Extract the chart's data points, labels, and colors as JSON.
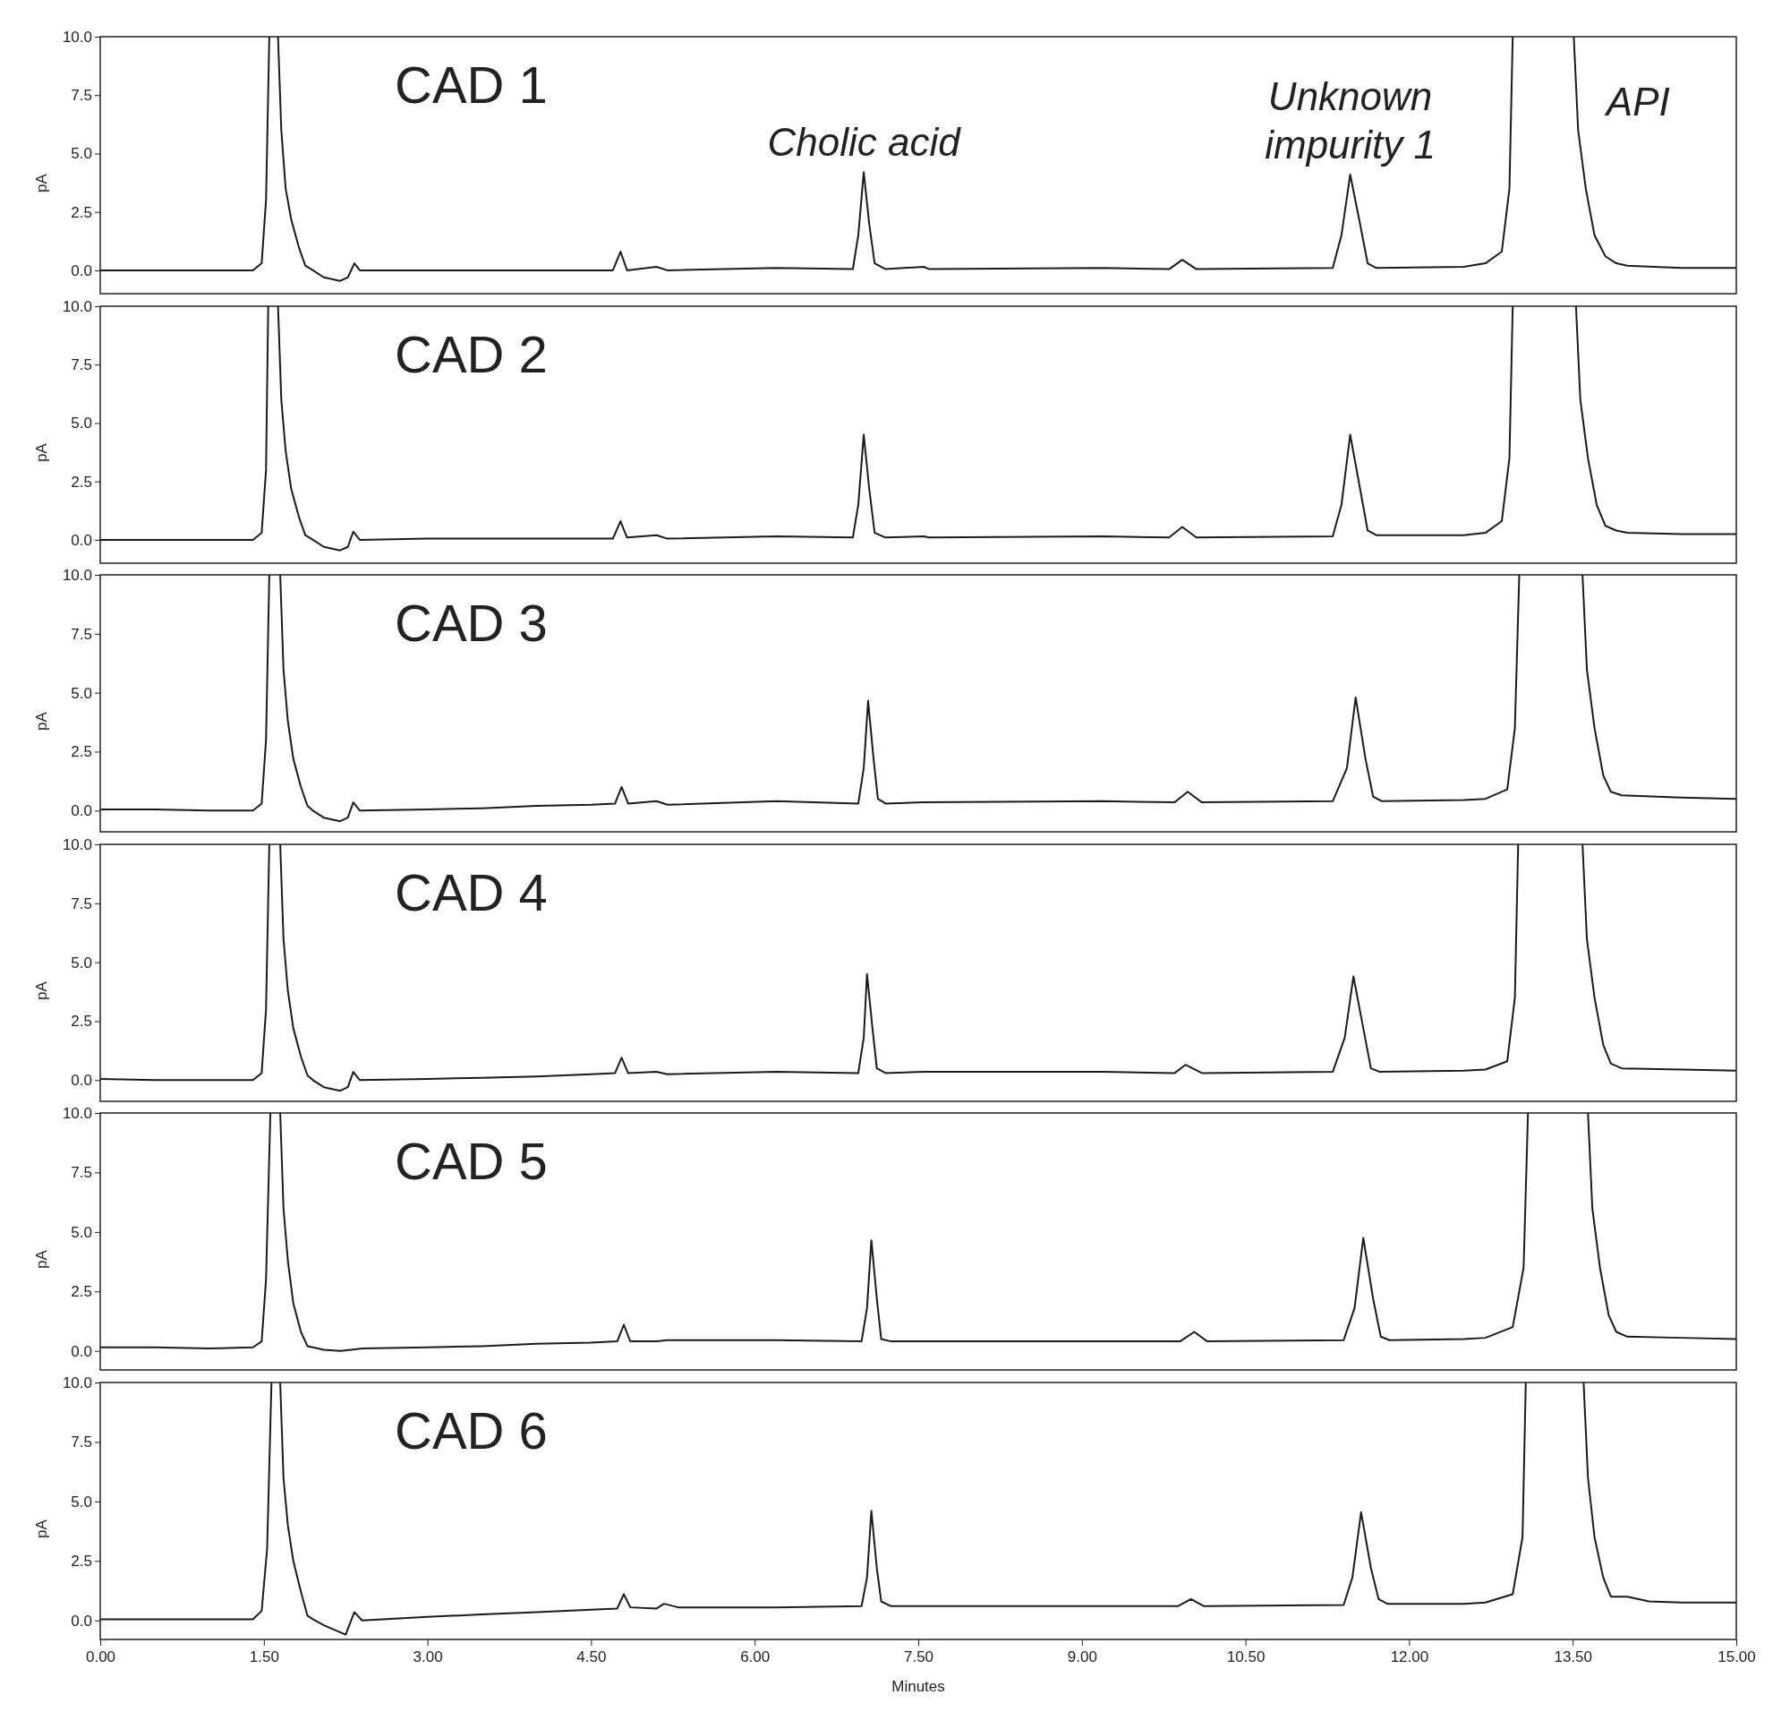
{
  "chart_data": [
    {
      "type": "line",
      "title": "CAD 1",
      "ylabel": "pA",
      "xlim": [
        0,
        15
      ],
      "ylim": [
        -1,
        10
      ],
      "tick_labels": "y",
      "yticks": [
        {
          "value": 0,
          "label": "0.0"
        },
        {
          "value": 2.5,
          "label": "2.5"
        },
        {
          "value": 5,
          "label": "5.0"
        },
        {
          "value": 7.5,
          "label": "7.5"
        },
        {
          "value": 10,
          "label": "10.0"
        }
      ],
      "annotations": [
        {
          "text": "Cholic acid",
          "x": 7.0,
          "y": 4.2
        },
        {
          "text": "Unknown\nimpurity 1",
          "x": 11.46,
          "y": 4.1
        },
        "API"
      ],
      "series": [
        {
          "color": "#1a1a1a",
          "x": [
            0,
            0.5,
            1.0,
            1.4,
            1.48,
            1.52,
            1.55,
            1.59,
            1.63,
            1.66,
            1.7,
            1.75,
            1.82,
            1.88,
            1.95,
            2.05,
            2.2,
            2.27,
            2.33,
            2.38,
            3.0,
            4.0,
            4.7,
            4.77,
            4.83,
            5.1,
            5.2,
            6.2,
            6.9,
            6.95,
            7.0,
            7.05,
            7.1,
            7.2,
            7.55,
            7.6,
            9.2,
            9.8,
            9.92,
            10.05,
            11.3,
            11.38,
            11.46,
            11.55,
            11.62,
            11.7,
            12.5,
            12.7,
            12.85,
            12.92,
            12.95,
            13.23,
            13.51,
            13.55,
            13.62,
            13.7,
            13.8,
            13.9,
            14.0,
            14.5,
            15.0
          ],
          "values": [
            0,
            0,
            0,
            0,
            0.3,
            3,
            10,
            null,
            10,
            6,
            3.5,
            2.2,
            1.0,
            0.2,
            0,
            -0.3,
            -0.45,
            -0.3,
            0.3,
            0,
            0,
            0,
            0,
            0.8,
            0,
            0.15,
            0,
            0.1,
            0.05,
            1.5,
            4.2,
            2.0,
            0.3,
            0.05,
            0.15,
            0.05,
            0.1,
            0.05,
            0.45,
            0.05,
            0.1,
            1.5,
            4.1,
            2.0,
            0.3,
            0.1,
            0.15,
            0.3,
            0.8,
            3.5,
            10,
            null,
            10,
            6,
            3.5,
            1.5,
            0.6,
            0.3,
            0.2,
            0.1,
            0.1
          ]
        }
      ]
    },
    {
      "type": "line",
      "title": "CAD 2",
      "ylabel": "pA",
      "xlim": [
        0,
        15
      ],
      "ylim": [
        -1,
        10
      ],
      "tick_labels": "y",
      "yticks": [
        {
          "value": 0,
          "label": "0.0"
        },
        {
          "value": 2.5,
          "label": "2.5"
        },
        {
          "value": 5,
          "label": "5.0"
        },
        {
          "value": 7.5,
          "label": "7.5"
        },
        {
          "value": 10,
          "label": "10.0"
        }
      ],
      "series": [
        {
          "color": "#1a1a1a",
          "x": [
            0,
            0.5,
            1.0,
            1.4,
            1.48,
            1.52,
            1.54,
            1.59,
            1.63,
            1.66,
            1.7,
            1.75,
            1.82,
            1.88,
            1.95,
            2.05,
            2.2,
            2.27,
            2.32,
            2.38,
            3.0,
            4.0,
            4.7,
            4.77,
            4.83,
            5.1,
            5.2,
            6.2,
            6.9,
            6.95,
            7.0,
            7.05,
            7.1,
            7.2,
            7.55,
            7.6,
            9.2,
            9.8,
            9.92,
            10.05,
            11.3,
            11.38,
            11.46,
            11.55,
            11.62,
            11.7,
            12.5,
            12.7,
            12.85,
            12.92,
            12.95,
            13.24,
            13.53,
            13.57,
            13.64,
            13.72,
            13.8,
            13.9,
            14.0,
            14.5,
            15.0
          ],
          "values": [
            0,
            0,
            0,
            0,
            0.3,
            3,
            10,
            null,
            10,
            6,
            3.8,
            2.2,
            1.0,
            0.2,
            0,
            -0.3,
            -0.45,
            -0.3,
            0.35,
            0,
            0.05,
            0.05,
            0.05,
            0.8,
            0.1,
            0.2,
            0.05,
            0.15,
            0.1,
            1.5,
            4.5,
            2.2,
            0.3,
            0.1,
            0.15,
            0.1,
            0.15,
            0.1,
            0.55,
            0.1,
            0.15,
            1.5,
            4.5,
            2.2,
            0.4,
            0.2,
            0.2,
            0.3,
            0.8,
            3.5,
            10,
            null,
            10,
            6,
            3.5,
            1.5,
            0.6,
            0.4,
            0.3,
            0.25,
            0.25
          ]
        }
      ]
    },
    {
      "type": "line",
      "title": "CAD 3",
      "ylabel": "pA",
      "xlim": [
        0,
        15
      ],
      "ylim": [
        -0.9,
        10
      ],
      "tick_labels": "y",
      "yticks": [
        {
          "value": 0,
          "label": "0.0"
        },
        {
          "value": 2.5,
          "label": "2.5"
        },
        {
          "value": 5,
          "label": "5.0"
        },
        {
          "value": 7.5,
          "label": "7.5"
        },
        {
          "value": 10,
          "label": "10.0"
        }
      ],
      "series": [
        {
          "color": "#1a1a1a",
          "x": [
            0,
            0.5,
            1.0,
            1.4,
            1.48,
            1.52,
            1.55,
            1.6,
            1.65,
            1.68,
            1.72,
            1.77,
            1.84,
            1.9,
            1.95,
            2.05,
            2.2,
            2.27,
            2.32,
            2.38,
            3.0,
            3.5,
            4.0,
            4.5,
            4.72,
            4.78,
            4.84,
            5.1,
            5.2,
            6.2,
            6.95,
            7.0,
            7.04,
            7.09,
            7.13,
            7.2,
            7.55,
            9.2,
            9.85,
            9.97,
            10.1,
            11.3,
            11.43,
            11.51,
            11.6,
            11.67,
            11.75,
            12.5,
            12.7,
            12.9,
            12.97,
            13.01,
            13.3,
            13.59,
            13.63,
            13.7,
            13.78,
            13.85,
            13.95,
            14.5,
            15.0
          ],
          "values": [
            0.05,
            0.05,
            0,
            0,
            0.3,
            3,
            10,
            null,
            10,
            6,
            3.8,
            2.2,
            1.0,
            0.2,
            0,
            -0.3,
            -0.45,
            -0.3,
            0.35,
            0,
            0.05,
            0.1,
            0.2,
            0.25,
            0.3,
            1.0,
            0.3,
            0.4,
            0.25,
            0.4,
            0.3,
            1.8,
            4.65,
            2.2,
            0.5,
            0.3,
            0.35,
            0.4,
            0.35,
            0.8,
            0.35,
            0.4,
            1.8,
            4.8,
            2.2,
            0.6,
            0.4,
            0.45,
            0.5,
            0.9,
            3.5,
            10,
            null,
            10,
            6,
            3.5,
            1.5,
            0.8,
            0.65,
            0.55,
            0.5
          ]
        }
      ]
    },
    {
      "type": "line",
      "title": "CAD 4",
      "ylabel": "pA",
      "xlim": [
        0,
        15
      ],
      "ylim": [
        -0.9,
        10
      ],
      "tick_labels": "y",
      "yticks": [
        {
          "value": 0,
          "label": "0.0"
        },
        {
          "value": 2.5,
          "label": "2.5"
        },
        {
          "value": 5,
          "label": "5.0"
        },
        {
          "value": 7.5,
          "label": "7.5"
        },
        {
          "value": 10,
          "label": "10.0"
        }
      ],
      "series": [
        {
          "color": "#1a1a1a",
          "x": [
            0,
            0.5,
            1.0,
            1.4,
            1.48,
            1.52,
            1.55,
            1.6,
            1.65,
            1.68,
            1.72,
            1.77,
            1.84,
            1.9,
            1.95,
            2.05,
            2.2,
            2.27,
            2.32,
            2.38,
            3.0,
            3.5,
            4.0,
            4.5,
            4.72,
            4.78,
            4.84,
            5.1,
            5.2,
            6.2,
            6.95,
            7.0,
            7.03,
            7.08,
            7.12,
            7.2,
            7.55,
            9.2,
            9.85,
            9.95,
            10.1,
            11.3,
            11.41,
            11.49,
            11.58,
            11.65,
            11.73,
            12.5,
            12.7,
            12.9,
            12.97,
            13.0,
            13.3,
            13.59,
            13.63,
            13.7,
            13.78,
            13.85,
            13.95,
            14.5,
            15.0
          ],
          "values": [
            0.05,
            0,
            0,
            0,
            0.3,
            3,
            10,
            null,
            10,
            6,
            3.8,
            2.2,
            1.0,
            0.2,
            0,
            -0.3,
            -0.45,
            -0.3,
            0.35,
            0,
            0.05,
            0.1,
            0.15,
            0.25,
            0.3,
            0.95,
            0.3,
            0.35,
            0.25,
            0.35,
            0.3,
            1.8,
            4.5,
            2.2,
            0.5,
            0.3,
            0.35,
            0.35,
            0.3,
            0.65,
            0.3,
            0.35,
            1.8,
            4.4,
            2.2,
            0.5,
            0.35,
            0.4,
            0.45,
            0.8,
            3.5,
            10,
            null,
            10,
            6,
            3.5,
            1.5,
            0.7,
            0.5,
            0.45,
            0.4
          ]
        }
      ]
    },
    {
      "type": "line",
      "title": "CAD 5",
      "ylabel": "pA",
      "xlim": [
        0,
        15
      ],
      "ylim": [
        -0.8,
        10
      ],
      "tick_labels": "y",
      "yticks": [
        {
          "value": 0,
          "label": "0.0"
        },
        {
          "value": 2.5,
          "label": "2.5"
        },
        {
          "value": 5,
          "label": "5.0"
        },
        {
          "value": 7.5,
          "label": "7.5"
        },
        {
          "value": 10,
          "label": "10.0"
        }
      ],
      "series": [
        {
          "color": "#1a1a1a",
          "x": [
            0,
            0.5,
            1.0,
            1.4,
            1.48,
            1.52,
            1.56,
            1.6,
            1.65,
            1.68,
            1.72,
            1.77,
            1.84,
            1.9,
            1.95,
            2.05,
            2.2,
            2.3,
            2.4,
            3.0,
            3.5,
            4.0,
            4.5,
            4.74,
            4.8,
            4.86,
            5.1,
            5.2,
            6.2,
            6.98,
            7.03,
            7.07,
            7.12,
            7.16,
            7.25,
            7.6,
            9.2,
            9.9,
            10.03,
            10.15,
            11.4,
            11.5,
            11.58,
            11.67,
            11.74,
            11.82,
            12.5,
            12.7,
            12.95,
            13.05,
            13.09,
            13.37,
            13.64,
            13.68,
            13.75,
            13.83,
            13.9,
            14.0,
            14.5,
            15.0
          ],
          "values": [
            0.15,
            0.15,
            0.1,
            0.15,
            0.4,
            3,
            10,
            null,
            10,
            6,
            3.8,
            2.0,
            0.8,
            0.2,
            0.15,
            0.05,
            0,
            0.05,
            0.1,
            0.15,
            0.2,
            0.3,
            0.35,
            0.4,
            1.1,
            0.4,
            0.4,
            0.45,
            0.45,
            0.4,
            1.8,
            4.65,
            2.2,
            0.5,
            0.4,
            0.4,
            0.4,
            0.4,
            0.8,
            0.4,
            0.45,
            1.8,
            4.75,
            2.2,
            0.6,
            0.45,
            0.5,
            0.55,
            1.0,
            3.5,
            10,
            null,
            10,
            6,
            3.5,
            1.5,
            0.8,
            0.6,
            0.55,
            0.5
          ]
        }
      ]
    },
    {
      "type": "line",
      "title": "CAD 6",
      "xlabel": "Minutes",
      "ylabel": "pA",
      "xlim": [
        0,
        15
      ],
      "ylim": [
        -0.8,
        10
      ],
      "xticks": [
        {
          "value": 0,
          "label": "0.00"
        },
        {
          "value": 1.5,
          "label": "1.50"
        },
        {
          "value": 3,
          "label": "3.00"
        },
        {
          "value": 4.5,
          "label": "4.50"
        },
        {
          "value": 6,
          "label": "6.00"
        },
        {
          "value": 7.5,
          "label": "7.50"
        },
        {
          "value": 9,
          "label": "9.00"
        },
        {
          "value": 10.5,
          "label": "10.50"
        },
        {
          "value": 12,
          "label": "12.00"
        },
        {
          "value": 13.5,
          "label": "13.50"
        },
        {
          "value": 15,
          "label": "15.00"
        }
      ],
      "yticks": [
        {
          "value": 0,
          "label": "0.0"
        },
        {
          "value": 2.5,
          "label": "2.5"
        },
        {
          "value": 5,
          "label": "5.0"
        },
        {
          "value": 7.5,
          "label": "7.5"
        },
        {
          "value": 10,
          "label": "10.0"
        }
      ],
      "series": [
        {
          "color": "#1a1a1a",
          "x": [
            0,
            0.5,
            1.0,
            1.4,
            1.48,
            1.53,
            1.57,
            1.61,
            1.65,
            1.68,
            1.72,
            1.77,
            1.84,
            1.9,
            1.95,
            2.05,
            2.15,
            2.25,
            2.33,
            2.4,
            3.0,
            3.5,
            4.0,
            4.5,
            4.74,
            4.8,
            4.86,
            5.1,
            5.17,
            5.3,
            6.2,
            6.98,
            7.03,
            7.07,
            7.12,
            7.16,
            7.25,
            7.6,
            9.2,
            9.88,
            10.0,
            10.12,
            11.4,
            11.48,
            11.56,
            11.65,
            11.72,
            11.8,
            12.5,
            12.7,
            12.95,
            13.04,
            13.07,
            13.33,
            13.6,
            13.64,
            13.7,
            13.78,
            13.85,
            14.0,
            14.2,
            14.5,
            15.0
          ],
          "values": [
            0.05,
            0.05,
            0.05,
            0.05,
            0.4,
            3,
            10,
            null,
            10,
            6,
            4.0,
            2.5,
            1.2,
            0.2,
            0.05,
            -0.2,
            -0.4,
            -0.6,
            0.35,
            0,
            0.15,
            0.25,
            0.35,
            0.45,
            0.5,
            1.1,
            0.55,
            0.5,
            0.7,
            0.55,
            0.55,
            0.6,
            1.8,
            4.6,
            2.2,
            0.8,
            0.6,
            0.6,
            0.6,
            0.6,
            0.9,
            0.6,
            0.65,
            1.8,
            4.55,
            2.2,
            0.9,
            0.7,
            0.7,
            0.75,
            1.1,
            3.5,
            10,
            null,
            10,
            6,
            3.5,
            1.8,
            1.0,
            1.0,
            0.8,
            0.75,
            0.75
          ]
        }
      ]
    }
  ]
}
